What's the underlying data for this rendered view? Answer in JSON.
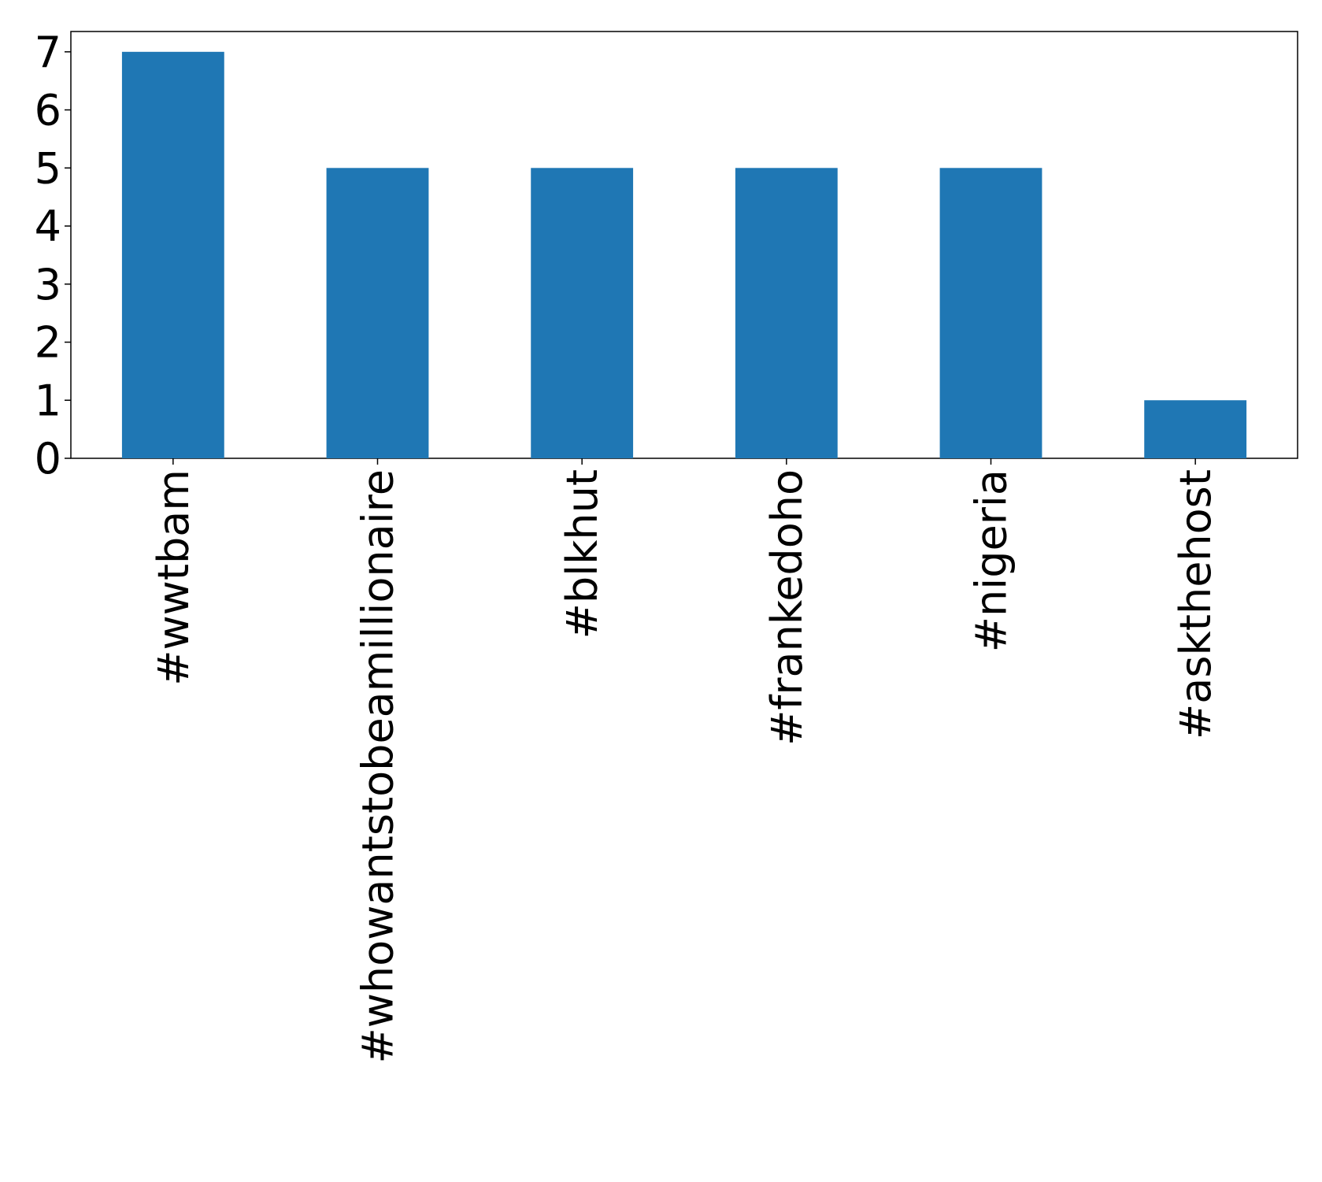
{
  "chart_data": {
    "type": "bar",
    "categories": [
      "#wwtbam",
      "#whowantstobeamillionaire",
      "#blkhut",
      "#frankedoho",
      "#nigeria",
      "#askthehost"
    ],
    "values": [
      7,
      5,
      5,
      5,
      5,
      1
    ],
    "color": "#1f77b4",
    "ylim": [
      0,
      7.35
    ],
    "yticks": [
      0,
      1,
      2,
      3,
      4,
      5,
      6,
      7
    ],
    "grid": false
  }
}
